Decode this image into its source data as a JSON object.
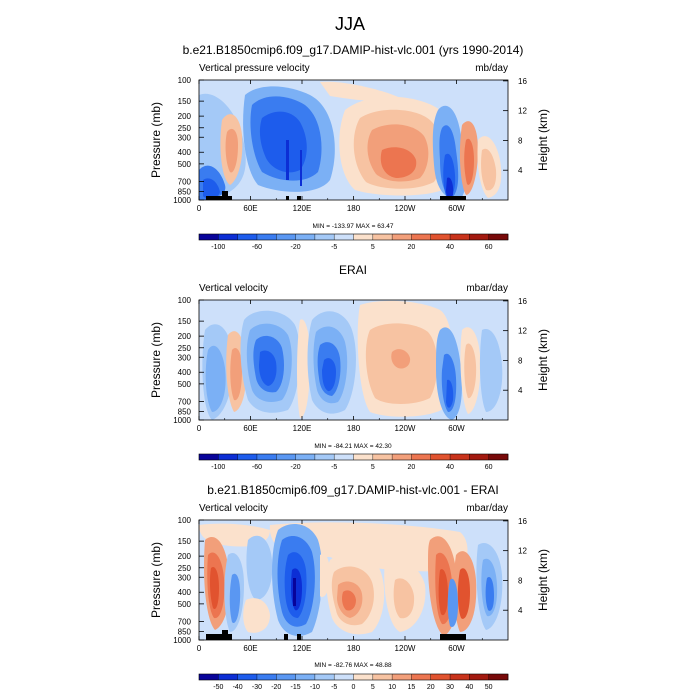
{
  "figure": {
    "title": "JJA"
  },
  "colorbars": {
    "std": {
      "labels": [
        "-100",
        "-60",
        "-20",
        "-5",
        "5",
        "20",
        "40",
        "60"
      ],
      "colors": [
        "#08039a",
        "#0c2ed5",
        "#1d5cec",
        "#3a7cf0",
        "#5a97f2",
        "#7bb0f5",
        "#a4c9f7",
        "#cde0fa",
        "#fbe1cc",
        "#f7c3a2",
        "#f29f7a",
        "#ec7550",
        "#e1532f",
        "#c9331b",
        "#a3190f",
        "#780909"
      ]
    },
    "diff": {
      "labels": [
        "-50",
        "-40",
        "-30",
        "-20",
        "-15",
        "-10",
        "-5",
        "0",
        "5",
        "10",
        "15",
        "20",
        "30",
        "40",
        "50"
      ],
      "colors": [
        "#08039a",
        "#0c2ed5",
        "#1d5cec",
        "#3a7cf0",
        "#5a97f2",
        "#7bb0f5",
        "#a4c9f7",
        "#cde0fa",
        "#fbe1cc",
        "#f7c3a2",
        "#f29f7a",
        "#ec7550",
        "#e1532f",
        "#c9331b",
        "#a3190f",
        "#780909"
      ]
    }
  },
  "panels": [
    {
      "title": "b.e21.B1850cmip6.f09_g17.DAMIP-hist-vlc.001 (yrs 1990-2014)",
      "left_label": "Vertical pressure velocity",
      "right_label": "mb/day",
      "ylabel": "Pressure (mb)",
      "ylabel_right": "Height (km)",
      "minmax": "MIN = -133.97  MAX = 63.47",
      "colorbar": "std"
    },
    {
      "title": "ERAI",
      "left_label": "Vertical velocity",
      "right_label": "mbar/day",
      "ylabel": "Pressure (mb)",
      "ylabel_right": "Height (km)",
      "minmax": "MIN = -84.21  MAX = 42.30",
      "colorbar": "std"
    },
    {
      "title": "b.e21.B1850cmip6.f09_g17.DAMIP-hist-vlc.001 - ERAI",
      "left_label": "Vertical velocity",
      "right_label": "mbar/day",
      "ylabel": "Pressure (mb)",
      "ylabel_right": "Height (km)",
      "minmax": "MIN = -82.76  MAX = 48.88",
      "colorbar": "diff"
    }
  ],
  "chart_data": [
    {
      "type": "heatmap",
      "title": "b.e21.B1850cmip6.f09_g17.DAMIP-hist-vlc.001 (yrs 1990-2014)",
      "xlabel": "",
      "ylabel": "Pressure (mb)",
      "ylabel_right": "Height (km)",
      "x_ticks": [
        "0",
        "60E",
        "120E",
        "180",
        "120W",
        "60W"
      ],
      "x_tick_values": [
        0,
        60,
        120,
        180,
        240,
        300
      ],
      "xlim": [
        0,
        360
      ],
      "y_ticks": [
        "100",
        "150",
        "200",
        "250",
        "300",
        "400",
        "500",
        "700",
        "850",
        "1000"
      ],
      "y_tick_values": [
        100,
        150,
        200,
        250,
        300,
        400,
        500,
        700,
        850,
        1000
      ],
      "ylim": [
        1000,
        100
      ],
      "y_scale": "log",
      "right_ticks": [
        "4",
        "8",
        "12",
        "16"
      ],
      "right_tick_values": [
        4,
        8,
        12,
        16
      ],
      "min": -133.97,
      "max": 63.47,
      "units": "mb/day",
      "levels": [
        -100,
        -80,
        -60,
        -40,
        -20,
        -10,
        -5,
        0,
        5,
        10,
        20,
        30,
        40,
        50,
        60
      ]
    },
    {
      "type": "heatmap",
      "title": "ERAI",
      "xlabel": "",
      "ylabel": "Pressure (mb)",
      "ylabel_right": "Height (km)",
      "x_ticks": [
        "0",
        "60E",
        "120E",
        "180",
        "120W",
        "60W"
      ],
      "x_tick_values": [
        0,
        60,
        120,
        180,
        240,
        300
      ],
      "xlim": [
        0,
        360
      ],
      "y_ticks": [
        "100",
        "150",
        "200",
        "250",
        "300",
        "400",
        "500",
        "700",
        "850",
        "1000"
      ],
      "y_tick_values": [
        100,
        150,
        200,
        250,
        300,
        400,
        500,
        700,
        850,
        1000
      ],
      "ylim": [
        1000,
        100
      ],
      "y_scale": "log",
      "right_ticks": [
        "4",
        "8",
        "12",
        "16"
      ],
      "right_tick_values": [
        4,
        8,
        12,
        16
      ],
      "min": -84.21,
      "max": 42.3,
      "units": "mbar/day",
      "levels": [
        -100,
        -80,
        -60,
        -40,
        -20,
        -10,
        -5,
        0,
        5,
        10,
        20,
        30,
        40,
        50,
        60
      ]
    },
    {
      "type": "heatmap",
      "title": "b.e21.B1850cmip6.f09_g17.DAMIP-hist-vlc.001 - ERAI",
      "xlabel": "",
      "ylabel": "Pressure (mb)",
      "ylabel_right": "Height (km)",
      "x_ticks": [
        "0",
        "60E",
        "120E",
        "180",
        "120W",
        "60W"
      ],
      "x_tick_values": [
        0,
        60,
        120,
        180,
        240,
        300
      ],
      "xlim": [
        0,
        360
      ],
      "y_ticks": [
        "100",
        "150",
        "200",
        "250",
        "300",
        "400",
        "500",
        "700",
        "850",
        "1000"
      ],
      "y_tick_values": [
        100,
        150,
        200,
        250,
        300,
        400,
        500,
        700,
        850,
        1000
      ],
      "ylim": [
        1000,
        100
      ],
      "y_scale": "log",
      "right_ticks": [
        "4",
        "8",
        "12",
        "16"
      ],
      "right_tick_values": [
        4,
        8,
        12,
        16
      ],
      "min": -82.76,
      "max": 48.88,
      "units": "mbar/day",
      "levels": [
        -50,
        -40,
        -30,
        -20,
        -15,
        -10,
        -5,
        0,
        5,
        10,
        15,
        20,
        30,
        40,
        50
      ]
    }
  ]
}
